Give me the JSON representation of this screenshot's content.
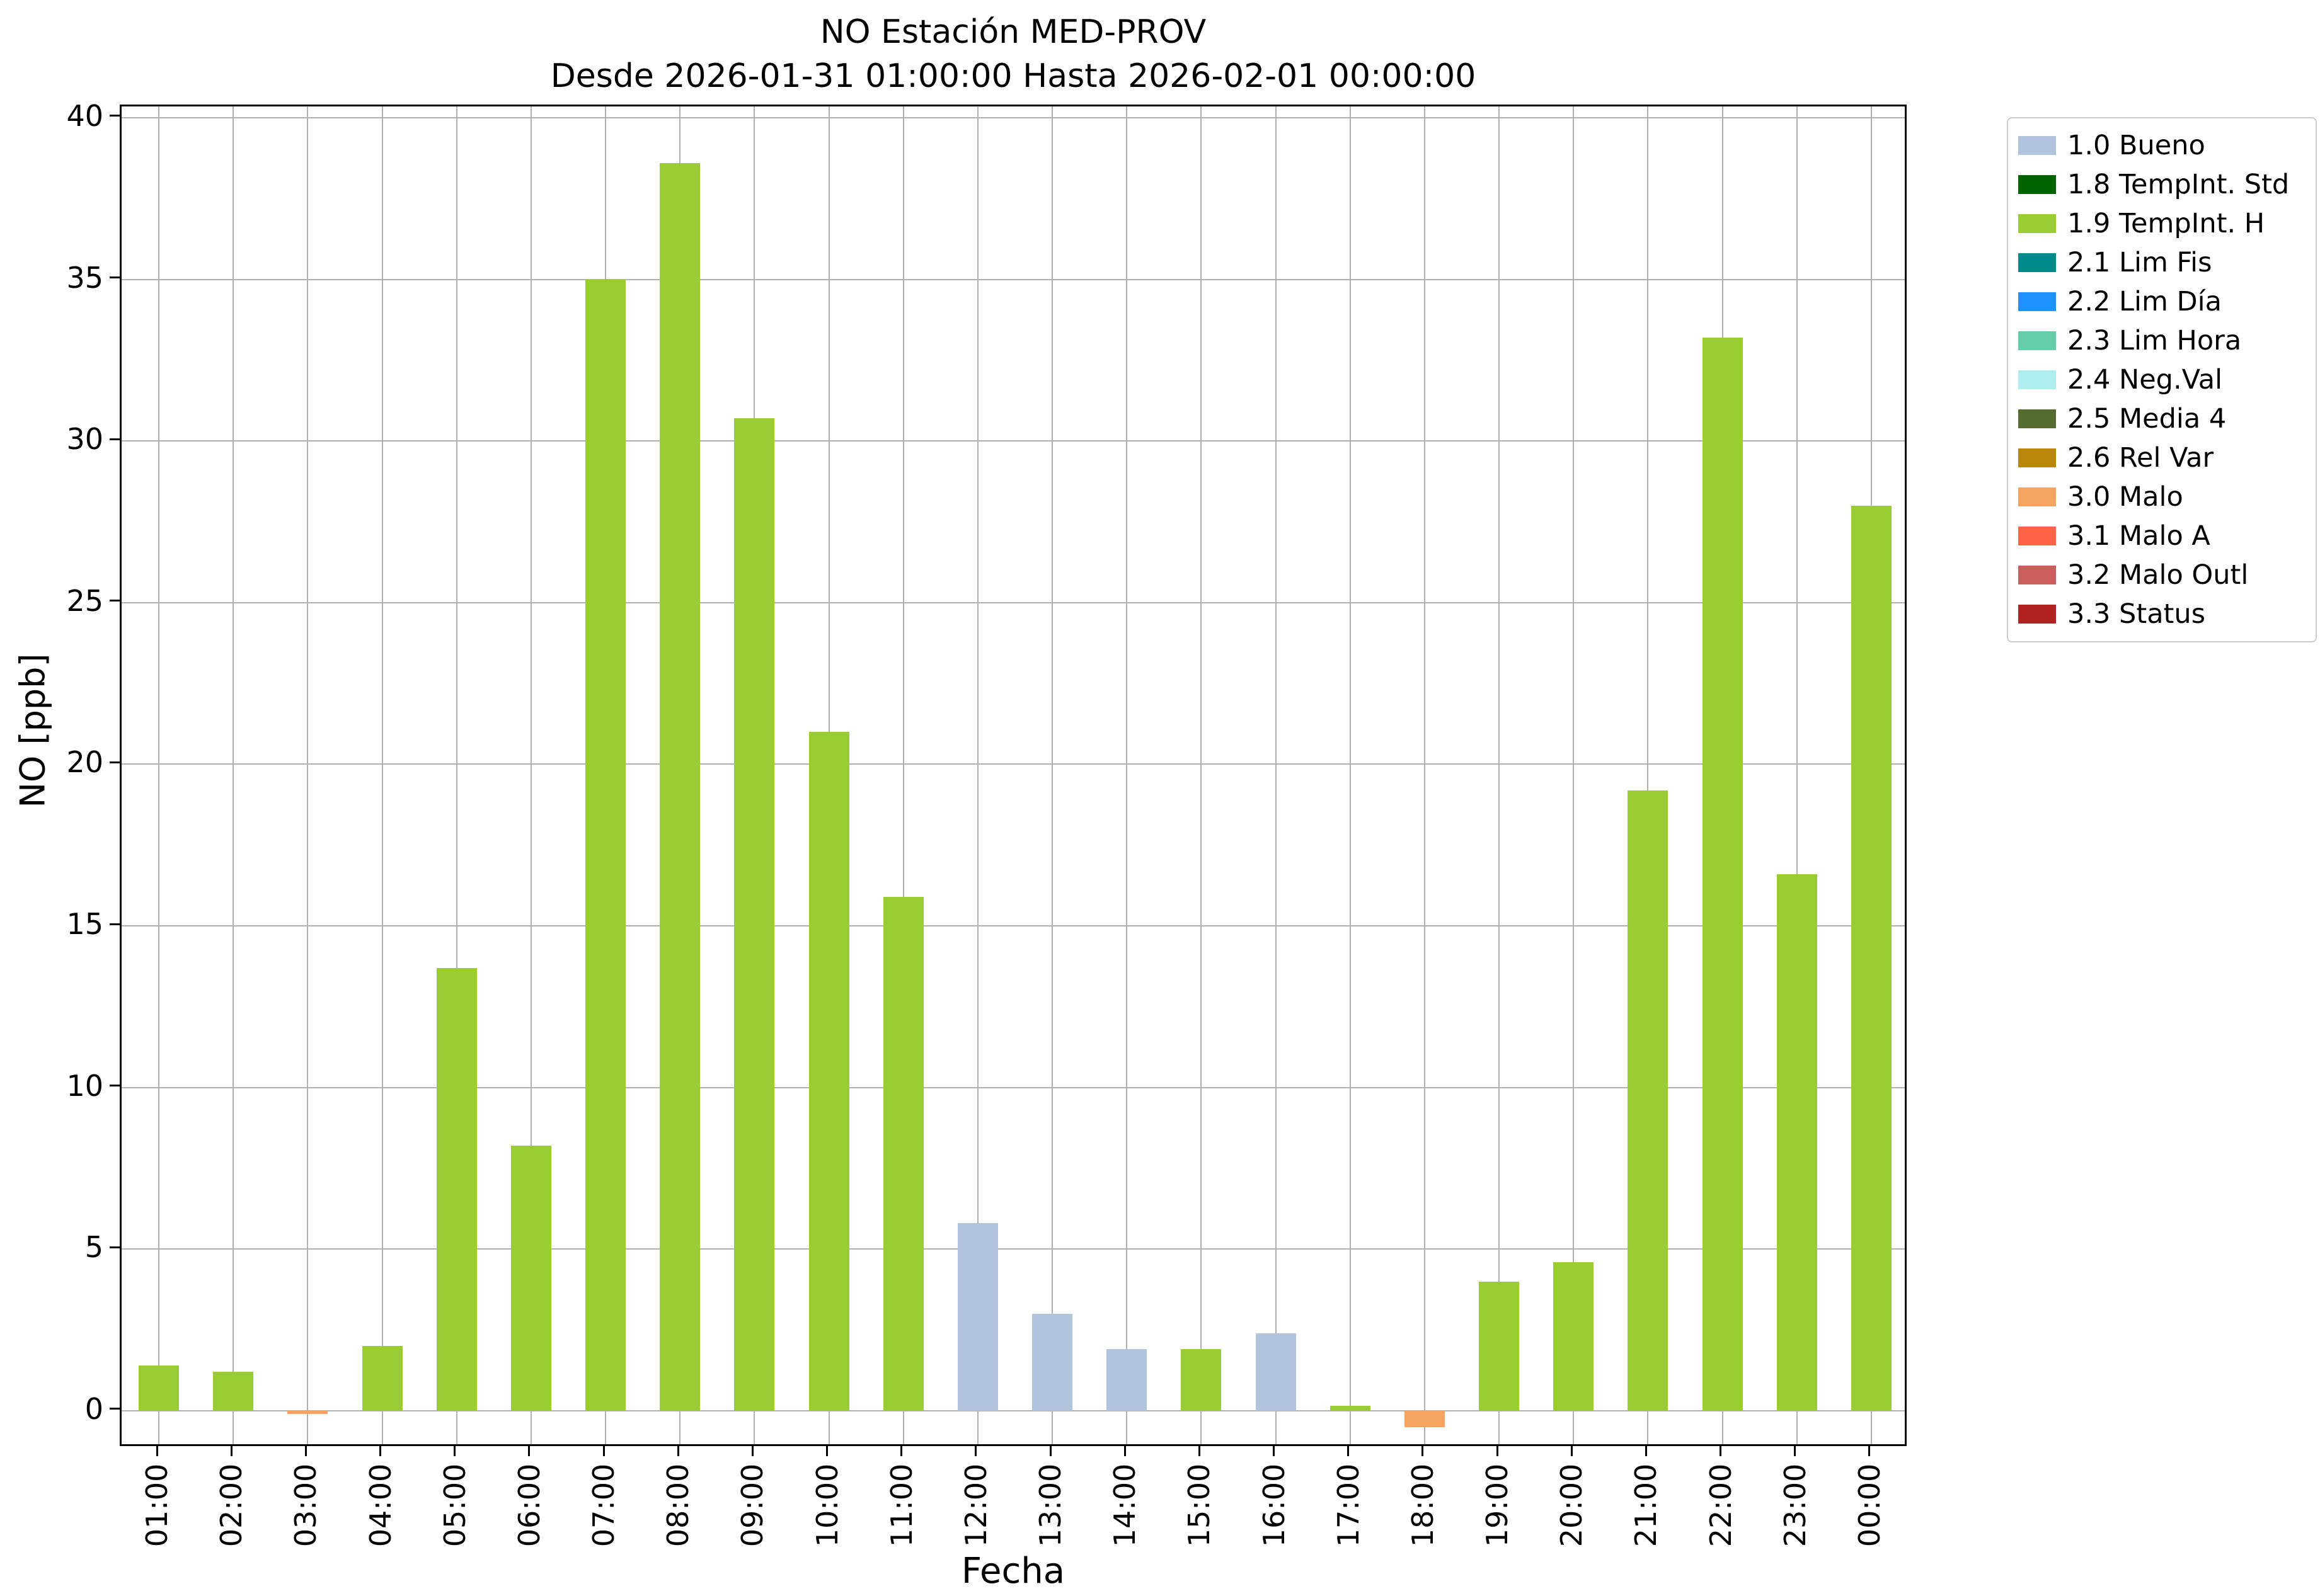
{
  "title": {
    "line1": "NO Estación MED-PROV",
    "line2": "Desde 2026-01-31 01:00:00 Hasta 2026-02-01 00:00:00"
  },
  "axes": {
    "xlabel": "Fecha",
    "ylabel": "NO [ppb]"
  },
  "legend": {
    "items": [
      {
        "label": "1.0 Bueno",
        "color": "#B0C4DE"
      },
      {
        "label": "1.8 TempInt. Std",
        "color": "#006400"
      },
      {
        "label": "1.9 TempInt. H",
        "color": "#9ACD32"
      },
      {
        "label": "2.1 Lim Fis",
        "color": "#008B8B"
      },
      {
        "label": "2.2 Lim Día",
        "color": "#1E90FF"
      },
      {
        "label": "2.3 Lim Hora",
        "color": "#66CDAA"
      },
      {
        "label": "2.4 Neg.Val",
        "color": "#AFEEEE"
      },
      {
        "label": "2.5 Media 4",
        "color": "#556B2F"
      },
      {
        "label": "2.6 Rel Var",
        "color": "#B8860B"
      },
      {
        "label": "3.0 Malo",
        "color": "#F4A460"
      },
      {
        "label": "3.1 Malo A",
        "color": "#FF6347"
      },
      {
        "label": "3.2 Malo Outl",
        "color": "#CD5C5C"
      },
      {
        "label": "3.3 Status",
        "color": "#B22222"
      }
    ]
  },
  "chart_data": {
    "type": "bar",
    "title": "NO Estación MED-PROV",
    "subtitle": "Desde 2026-01-31 01:00:00 Hasta 2026-02-01 00:00:00",
    "xlabel": "Fecha",
    "ylabel": "NO [ppb]",
    "ylim": [
      -1.15,
      40.35
    ],
    "yticks": [
      0,
      5,
      10,
      15,
      20,
      25,
      30,
      35,
      40
    ],
    "grid": true,
    "legend_position": "outside-right-top",
    "categories": [
      "01:00",
      "02:00",
      "03:00",
      "04:00",
      "05:00",
      "06:00",
      "07:00",
      "08:00",
      "09:00",
      "10:00",
      "11:00",
      "12:00",
      "13:00",
      "14:00",
      "15:00",
      "16:00",
      "17:00",
      "18:00",
      "19:00",
      "20:00",
      "21:00",
      "22:00",
      "23:00",
      "00:00"
    ],
    "values": [
      1.4,
      1.2,
      -0.1,
      2.0,
      13.7,
      8.2,
      35.0,
      38.6,
      30.7,
      21.0,
      15.9,
      5.8,
      3.0,
      1.9,
      1.9,
      2.4,
      0.15,
      -0.5,
      4.0,
      4.6,
      19.2,
      33.2,
      16.6,
      28.0
    ],
    "statuses": [
      "1.9 TempInt. H",
      "1.9 TempInt. H",
      "3.0 Malo",
      "1.9 TempInt. H",
      "1.9 TempInt. H",
      "1.9 TempInt. H",
      "1.9 TempInt. H",
      "1.9 TempInt. H",
      "1.9 TempInt. H",
      "1.9 TempInt. H",
      "1.9 TempInt. H",
      "1.0 Bueno",
      "1.0 Bueno",
      "1.0 Bueno",
      "1.9 TempInt. H",
      "1.0 Bueno",
      "1.9 TempInt. H",
      "3.0 Malo",
      "1.9 TempInt. H",
      "1.9 TempInt. H",
      "1.9 TempInt. H",
      "1.9 TempInt. H",
      "1.9 TempInt. H",
      "1.9 TempInt. H"
    ],
    "colors": [
      "#9ACD32",
      "#9ACD32",
      "#F4A460",
      "#9ACD32",
      "#9ACD32",
      "#9ACD32",
      "#9ACD32",
      "#9ACD32",
      "#9ACD32",
      "#9ACD32",
      "#9ACD32",
      "#B0C4DE",
      "#B0C4DE",
      "#B0C4DE",
      "#9ACD32",
      "#B0C4DE",
      "#9ACD32",
      "#F4A460",
      "#9ACD32",
      "#9ACD32",
      "#9ACD32",
      "#9ACD32",
      "#9ACD32",
      "#9ACD32"
    ]
  }
}
